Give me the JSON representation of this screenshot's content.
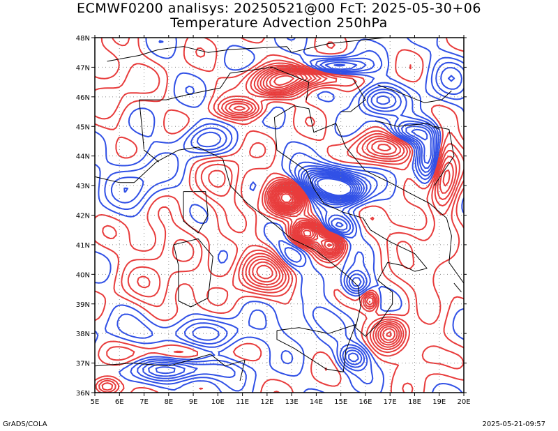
{
  "title_line1": "ECMWF0200 analisys: 20250521@00 FcT: 2025-05-30+06",
  "title_line2": "Temperature Advection 250hPa",
  "footer_left": "GrADS/COLA",
  "footer_right": "2025-05-21-09:57",
  "map": {
    "lon_range": [
      5,
      20
    ],
    "lat_range": [
      36,
      48
    ],
    "lon_ticks": [
      "5E",
      "6E",
      "7E",
      "8E",
      "9E",
      "10E",
      "11E",
      "12E",
      "13E",
      "14E",
      "15E",
      "16E",
      "17E",
      "18E",
      "19E",
      "20E"
    ],
    "lat_ticks": [
      "36N",
      "37N",
      "38N",
      "39N",
      "40N",
      "41N",
      "42N",
      "43N",
      "44N",
      "45N",
      "46N",
      "47N",
      "48N"
    ],
    "positive_color": "#e83c3c",
    "negative_color": "#3050e6",
    "coast_color": "#000000"
  }
}
